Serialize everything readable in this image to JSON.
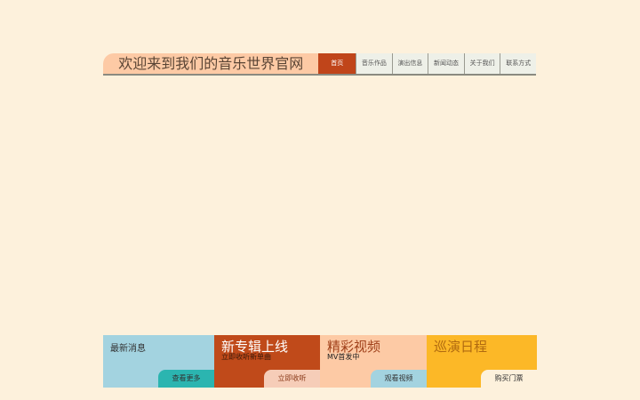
{
  "header": {
    "title": "欢迎来到我们的音乐世界官网"
  },
  "nav": [
    "首页",
    "音乐作品",
    "演出信息",
    "新闻动态",
    "关于我们",
    "联系方式"
  ],
  "panels": [
    {
      "title": "最新消息",
      "button": "查看更多"
    },
    {
      "title": "新专辑上线",
      "subtitle": "立即收听新单曲",
      "button": "立即收听"
    },
    {
      "title": "精彩视频",
      "subtitle": "MV首发中",
      "button": "观看视频"
    },
    {
      "title": "巡演日程",
      "button": "购买门票"
    }
  ]
}
